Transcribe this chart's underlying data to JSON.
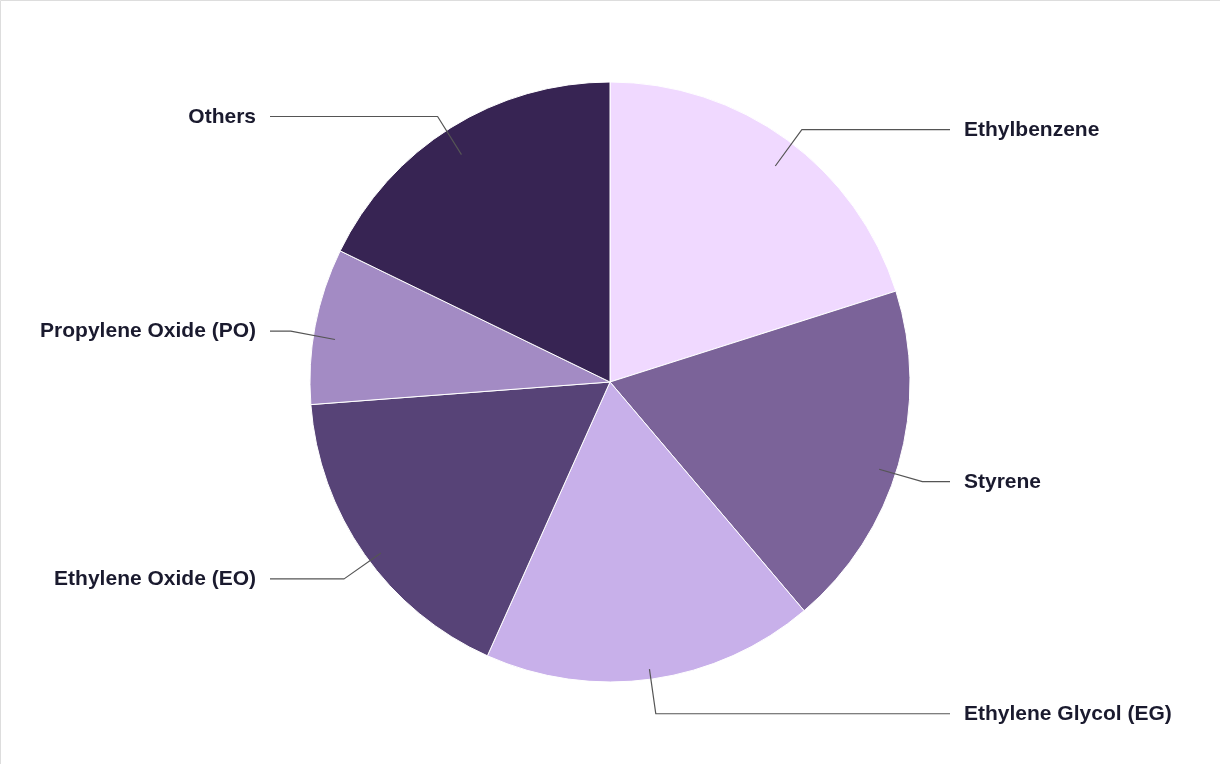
{
  "chart_data": {
    "type": "pie",
    "categories": [
      "Ethylbenzene",
      "Styrene",
      "Ethylene Glycol (EG)",
      "Ethylene Oxide (EO)",
      "Propylene Oxide (PO)",
      "Others"
    ],
    "values": [
      20.1,
      18.7,
      17.9,
      17.1,
      8.4,
      17.8
    ],
    "colors": [
      "#f0d9ff",
      "#7b6399",
      "#c8b0ea",
      "#574377",
      "#a38bc4",
      "#372453"
    ]
  }
}
